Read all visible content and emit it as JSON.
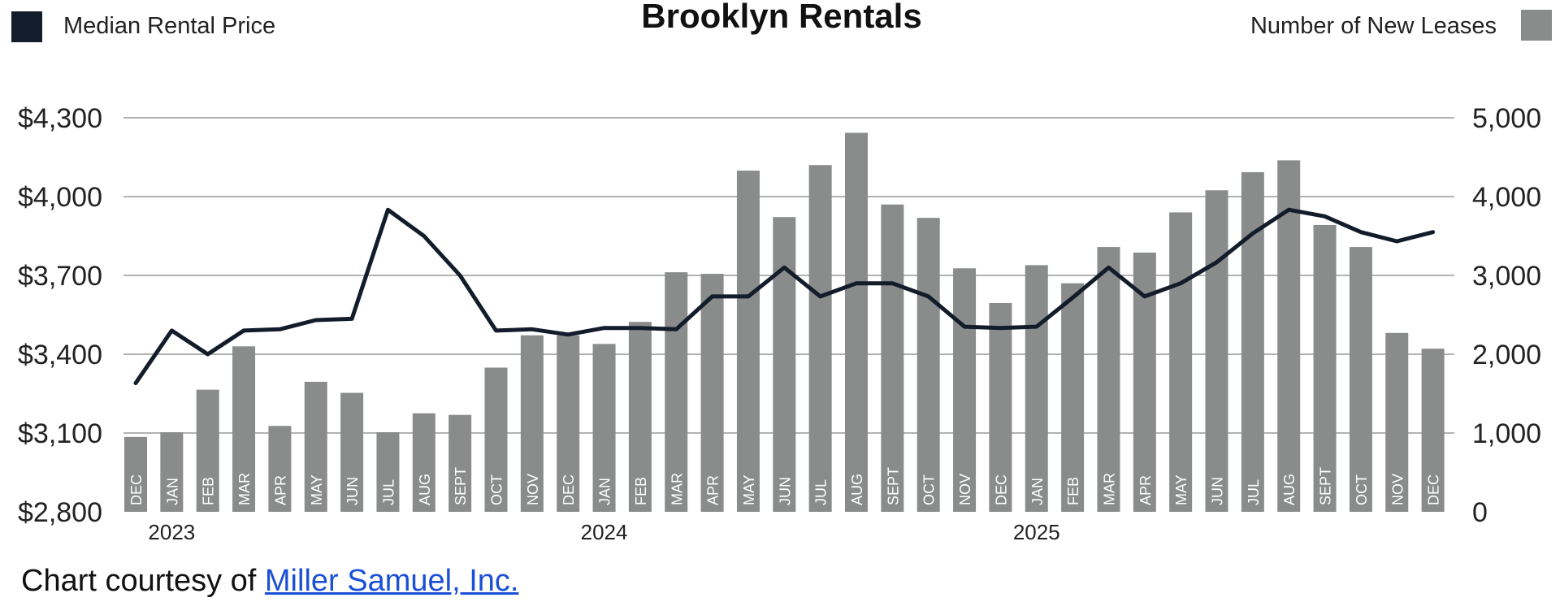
{
  "chart_data": {
    "type": "bar+line",
    "title": "Brooklyn Rentals",
    "legend": {
      "line_label": "Median Rental Price",
      "bar_label": "Number of New Leases",
      "placement": "top"
    },
    "categories": [
      "DEC",
      "JAN",
      "FEB",
      "MAR",
      "APR",
      "MAY",
      "JUN",
      "JUL",
      "AUG",
      "SEPT",
      "OCT",
      "NOV",
      "DEC",
      "JAN",
      "FEB",
      "MAR",
      "APR",
      "MAY",
      "JUN",
      "JUL",
      "AUG",
      "SEPT",
      "OCT",
      "NOV",
      "DEC",
      "JAN",
      "FEB",
      "MAR",
      "APR",
      "MAY",
      "JUN",
      "JUL",
      "AUG",
      "SEPT",
      "OCT",
      "NOV",
      "DEC"
    ],
    "years": [
      {
        "label": "2023",
        "index": 1
      },
      {
        "label": "2024",
        "index": 13
      },
      {
        "label": "2025",
        "index": 25
      }
    ],
    "left_axis": {
      "ylim": [
        2800,
        4300
      ],
      "ticks": [
        2800,
        3100,
        3400,
        3700,
        4000,
        4300
      ],
      "tick_labels": [
        "$2,800",
        "$3,100",
        "$3,400",
        "$3,700",
        "$4,000",
        "$4,300"
      ]
    },
    "right_axis": {
      "ylim": [
        0,
        5000
      ],
      "ticks": [
        0,
        1000,
        2000,
        3000,
        4000,
        5000
      ],
      "tick_labels": [
        "0",
        "1,000",
        "2,000",
        "3,000",
        "4,000",
        "5,000"
      ]
    },
    "series": [
      {
        "name": "Number of New Leases",
        "type": "bar",
        "axis": "right",
        "color": "#8a8c8c",
        "values": [
          950,
          1010,
          1550,
          2100,
          1090,
          1650,
          1510,
          1010,
          1250,
          1230,
          1830,
          2240,
          2240,
          2130,
          2410,
          3040,
          3020,
          4330,
          3740,
          4400,
          4810,
          3900,
          3730,
          3090,
          2650,
          3130,
          2900,
          3360,
          3290,
          3800,
          4080,
          4310,
          4460,
          3640,
          3360,
          2270,
          2070
        ]
      },
      {
        "name": "Median Rental Price",
        "type": "line",
        "axis": "left",
        "color": "#131c2b",
        "values": [
          3290,
          3490,
          3400,
          3490,
          3495,
          3530,
          3535,
          3950,
          3850,
          3700,
          3490,
          3495,
          3475,
          3500,
          3500,
          3495,
          3620,
          3620,
          3730,
          3620,
          3670,
          3670,
          3620,
          3505,
          3500,
          3505,
          3615,
          3730,
          3620,
          3670,
          3750,
          3860,
          3950,
          3925,
          3865,
          3830,
          3865
        ]
      }
    ],
    "grid": "horizontal"
  },
  "credit": {
    "prefix": "Chart courtesy of ",
    "link_text": "Miller Samuel, Inc."
  }
}
